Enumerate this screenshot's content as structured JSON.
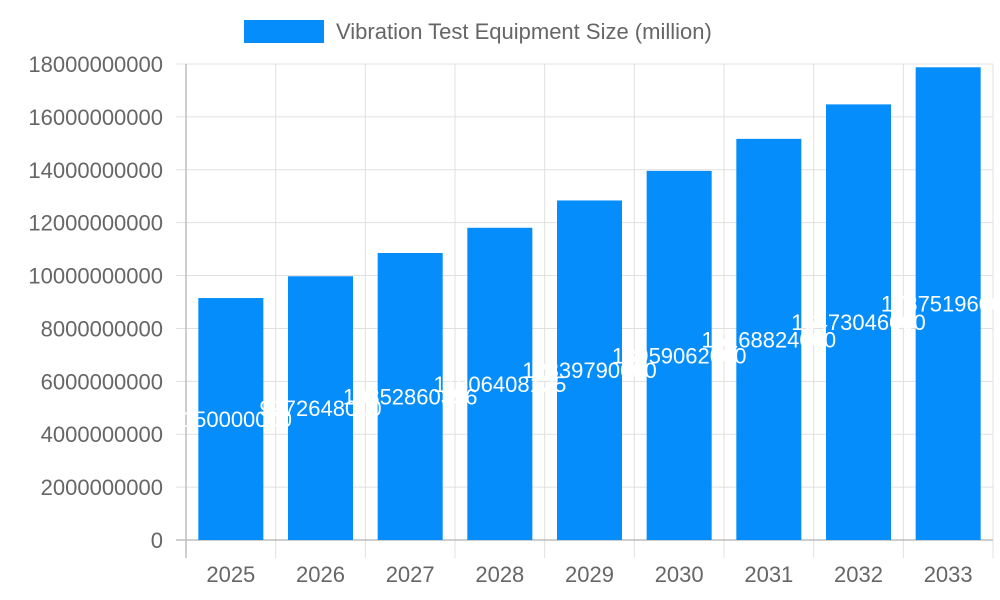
{
  "chart_data": {
    "type": "bar",
    "title": "",
    "xlabel": "",
    "ylabel": "",
    "categories": [
      "2025",
      "2026",
      "2027",
      "2028",
      "2029",
      "2030",
      "2031",
      "2032",
      "2033"
    ],
    "series": [
      {
        "name": "Vibration Test Equipment Size (million)",
        "values": [
          9150000000,
          9972648000,
          10852860356,
          11806408125,
          12839790000,
          13959062000,
          15168824000,
          16473046000,
          17875196000
        ],
        "color": "#058dfc"
      }
    ],
    "ylim": [
      0,
      18000000000
    ],
    "yticks": [
      "0",
      "2000000000",
      "4000000000",
      "6000000000",
      "8000000000",
      "10000000000",
      "12000000000",
      "14000000000",
      "16000000000",
      "18000000000"
    ],
    "grid": true,
    "legend": "top",
    "data_labels": true,
    "data_label_color": "#ffffff"
  }
}
